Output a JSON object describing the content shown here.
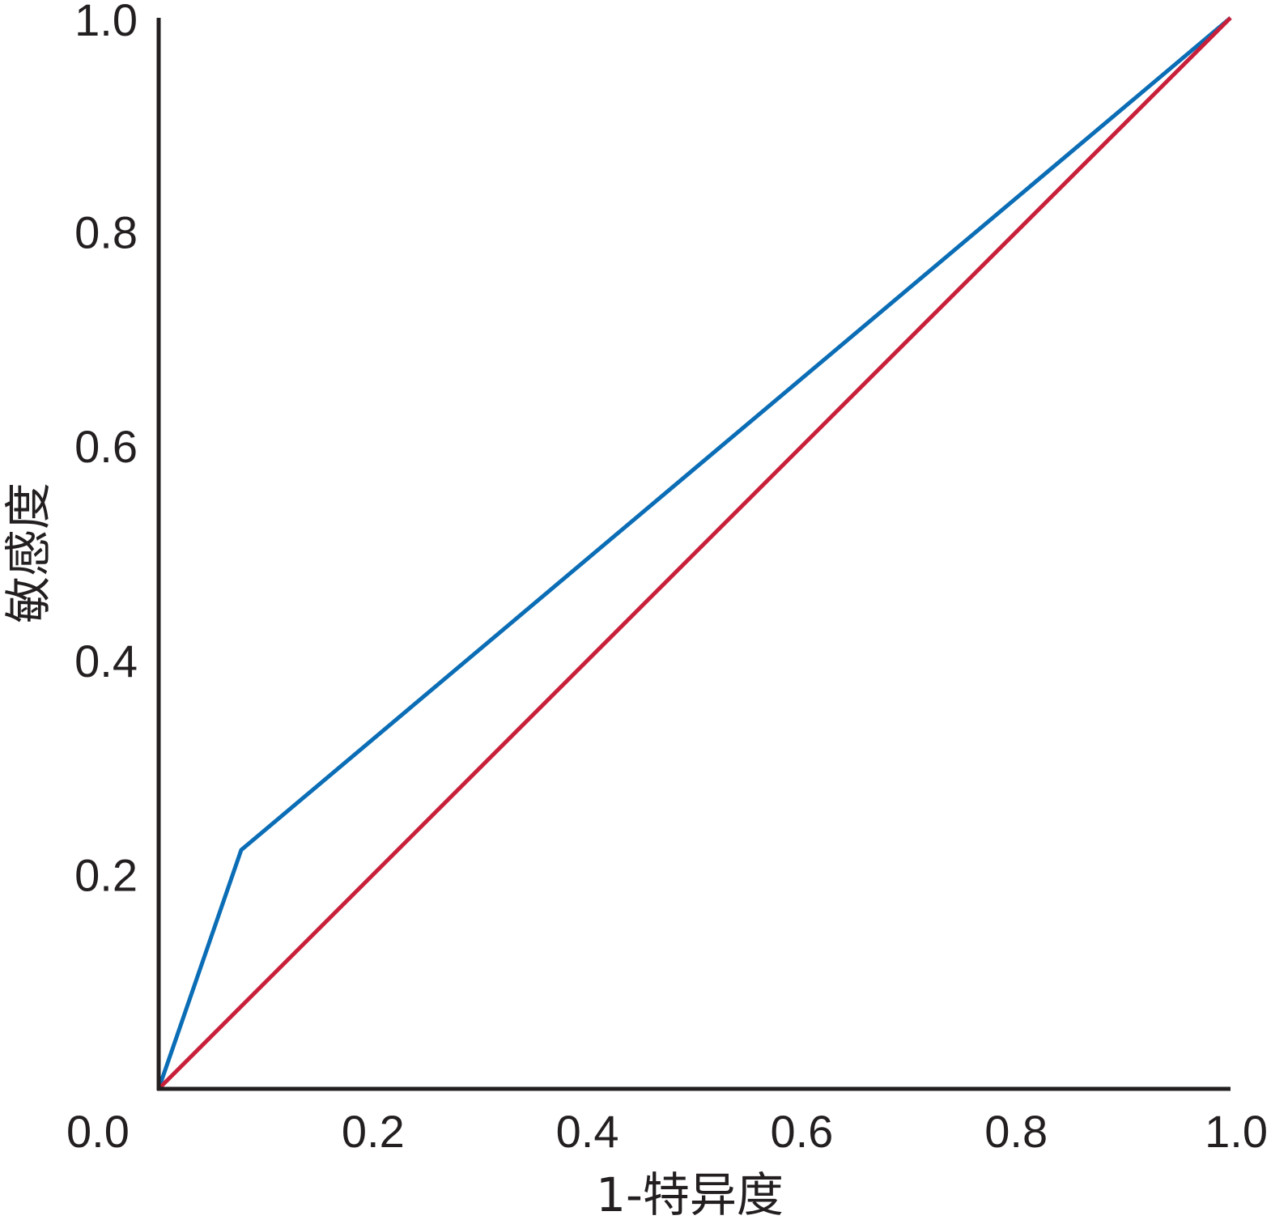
{
  "chart_data": {
    "type": "line",
    "title": "",
    "xlabel": "1-特异度",
    "ylabel": "敏感度",
    "xlim": [
      0.0,
      1.0
    ],
    "ylim": [
      0.0,
      1.0
    ],
    "x_ticks": [
      "0.0",
      "0.2",
      "0.4",
      "0.6",
      "0.8",
      "1.0"
    ],
    "y_ticks": [
      "0.0",
      "0.2",
      "0.4",
      "0.6",
      "0.8",
      "1.0"
    ],
    "grid": false,
    "legend": "none",
    "series": [
      {
        "color": "#0a6db5",
        "points": [
          [
            0.0,
            0.0
          ],
          [
            0.077,
            0.223
          ],
          [
            1.0,
            1.0
          ]
        ]
      },
      {
        "color": "#c8203a",
        "points": [
          [
            0.0,
            0.0
          ],
          [
            1.0,
            1.0
          ]
        ]
      }
    ]
  }
}
